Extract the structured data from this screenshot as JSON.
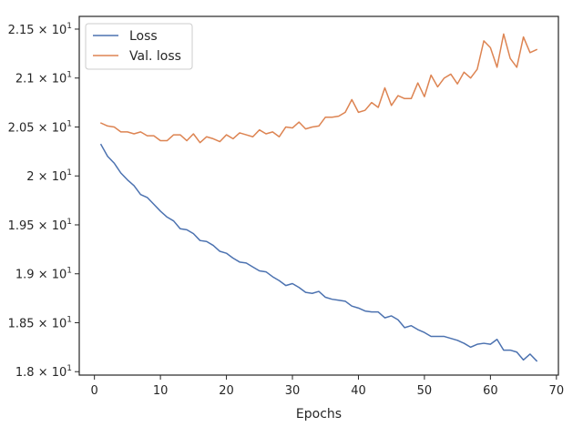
{
  "chart_data": {
    "type": "line",
    "title": "",
    "xlabel": "Epochs",
    "ylabel": "",
    "xlim": [
      -2.3,
      70.3
    ],
    "ylim": [
      17.965,
      21.63
    ],
    "grid": false,
    "legend_position": "top-left",
    "x_ticks": [
      0,
      10,
      20,
      30,
      40,
      50,
      60,
      70
    ],
    "x_tick_labels": [
      "0",
      "10",
      "20",
      "30",
      "40",
      "50",
      "60",
      "70"
    ],
    "y_ticks": [
      18.0,
      18.5,
      19.0,
      19.5,
      20.0,
      20.5,
      21.0,
      21.5
    ],
    "y_tick_labels": [
      {
        "mantissa": "1.8",
        "exp": "1"
      },
      {
        "mantissa": "1.85",
        "exp": "1"
      },
      {
        "mantissa": "1.9",
        "exp": "1"
      },
      {
        "mantissa": "1.95",
        "exp": "1"
      },
      {
        "mantissa": "2",
        "exp": "1"
      },
      {
        "mantissa": "2.05",
        "exp": "1"
      },
      {
        "mantissa": "2.1",
        "exp": "1"
      },
      {
        "mantissa": "2.15",
        "exp": "1"
      }
    ],
    "x": [
      1,
      2,
      3,
      4,
      5,
      6,
      7,
      8,
      9,
      10,
      11,
      12,
      13,
      14,
      15,
      16,
      17,
      18,
      19,
      20,
      21,
      22,
      23,
      24,
      25,
      26,
      27,
      28,
      29,
      30,
      31,
      32,
      33,
      34,
      35,
      36,
      37,
      38,
      39,
      40,
      41,
      42,
      43,
      44,
      45,
      46,
      47,
      48,
      49,
      50,
      51,
      52,
      53,
      54,
      55,
      56,
      57,
      58,
      59,
      60,
      61,
      62,
      63,
      64,
      65,
      66,
      67
    ],
    "series": [
      {
        "name": "Loss",
        "color": "#4c72b0",
        "values": [
          20.32,
          20.2,
          20.13,
          20.03,
          19.96,
          19.9,
          19.81,
          19.78,
          19.71,
          19.64,
          19.58,
          19.54,
          19.46,
          19.45,
          19.41,
          19.34,
          19.33,
          19.29,
          19.23,
          19.21,
          19.16,
          19.12,
          19.11,
          19.07,
          19.03,
          19.02,
          18.97,
          18.93,
          18.88,
          18.9,
          18.86,
          18.81,
          18.8,
          18.82,
          18.76,
          18.74,
          18.73,
          18.72,
          18.67,
          18.65,
          18.62,
          18.61,
          18.61,
          18.55,
          18.57,
          18.53,
          18.45,
          18.47,
          18.43,
          18.4,
          18.36,
          18.36,
          18.36,
          18.34,
          18.32,
          18.29,
          18.25,
          18.28,
          18.29,
          18.28,
          18.33,
          18.22,
          18.22,
          18.2,
          18.12,
          18.18,
          18.11
        ]
      },
      {
        "name": "Val. loss",
        "color": "#dd8452",
        "values": [
          20.54,
          20.51,
          20.5,
          20.45,
          20.45,
          20.43,
          20.45,
          20.41,
          20.41,
          20.36,
          20.36,
          20.42,
          20.42,
          20.36,
          20.43,
          20.34,
          20.4,
          20.38,
          20.35,
          20.42,
          20.38,
          20.44,
          20.42,
          20.4,
          20.47,
          20.43,
          20.45,
          20.4,
          20.5,
          20.49,
          20.55,
          20.48,
          20.5,
          20.51,
          20.6,
          20.6,
          20.61,
          20.65,
          20.78,
          20.65,
          20.67,
          20.75,
          20.7,
          20.9,
          20.72,
          20.82,
          20.79,
          20.79,
          20.95,
          20.81,
          21.03,
          20.91,
          21.0,
          21.04,
          20.94,
          21.06,
          21.0,
          21.09,
          21.38,
          21.31,
          21.11,
          21.45,
          21.2,
          21.11,
          21.42,
          21.26,
          21.29
        ]
      }
    ]
  }
}
